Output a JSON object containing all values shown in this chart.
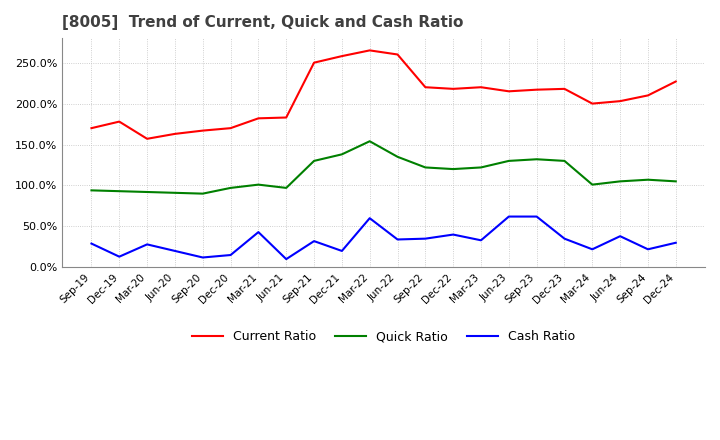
{
  "title": "[8005]  Trend of Current, Quick and Cash Ratio",
  "x_labels": [
    "Sep-19",
    "Dec-19",
    "Mar-20",
    "Jun-20",
    "Sep-20",
    "Dec-20",
    "Mar-21",
    "Jun-21",
    "Sep-21",
    "Dec-21",
    "Mar-22",
    "Jun-22",
    "Sep-22",
    "Dec-22",
    "Mar-23",
    "Jun-23",
    "Sep-23",
    "Dec-23",
    "Mar-24",
    "Jun-24",
    "Sep-24",
    "Dec-24"
  ],
  "current_ratio": [
    1.7,
    1.78,
    1.57,
    1.63,
    1.67,
    1.7,
    1.82,
    1.83,
    2.5,
    2.58,
    2.65,
    2.6,
    2.2,
    2.18,
    2.2,
    2.15,
    2.17,
    2.18,
    2.0,
    2.03,
    2.1,
    2.27
  ],
  "quick_ratio": [
    0.94,
    0.93,
    0.92,
    0.91,
    0.9,
    0.97,
    1.01,
    0.97,
    1.3,
    1.38,
    1.54,
    1.35,
    1.22,
    1.2,
    1.22,
    1.3,
    1.32,
    1.3,
    1.01,
    1.05,
    1.07,
    1.05
  ],
  "cash_ratio": [
    0.29,
    0.13,
    0.28,
    0.2,
    0.12,
    0.15,
    0.43,
    0.1,
    0.32,
    0.2,
    0.6,
    0.34,
    0.35,
    0.4,
    0.33,
    0.62,
    0.62,
    0.35,
    0.22,
    0.38,
    0.22,
    0.3
  ],
  "ylim": [
    0.0,
    2.8
  ],
  "yticks": [
    0.0,
    0.5,
    1.0,
    1.5,
    2.0,
    2.5
  ],
  "current_color": "#ff0000",
  "quick_color": "#008000",
  "cash_color": "#0000ff",
  "background_color": "#ffffff",
  "grid_color": "#c0c0c0",
  "title_color": "#404040",
  "legend_labels": [
    "Current Ratio",
    "Quick Ratio",
    "Cash Ratio"
  ]
}
